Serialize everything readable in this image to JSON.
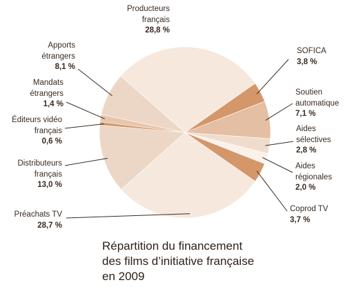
{
  "chart_data": {
    "type": "pie",
    "title": "Répartition du financement\ndes films d’initiative française\nen 2009",
    "unit": "%",
    "slices": [
      {
        "key": "sofica",
        "label": "SOFICA",
        "value": 3.8,
        "value_label": "3,8 %",
        "color": "#d4976a"
      },
      {
        "key": "soutien_automatique",
        "label": "Soutien\nautomatique",
        "value": 7.1,
        "value_label": "7,1 %",
        "color": "#e5bfa3"
      },
      {
        "key": "aides_selectives",
        "label": "Aides\nsélectives",
        "value": 2.8,
        "value_label": "2,8 %",
        "color": "#f0dccd"
      },
      {
        "key": "aides_regionales",
        "label": "Aides\nrégionales",
        "value": 2.0,
        "value_label": "2,0 %",
        "color": "#faf1ea"
      },
      {
        "key": "coprod_tv",
        "label": "Coprod TV",
        "value": 3.7,
        "value_label": "3,7 %",
        "color": "#d4976a"
      },
      {
        "key": "preachats_tv",
        "label": "Préachats TV",
        "value": 28.7,
        "value_label": "28,7 %",
        "color": "#f6e8dd"
      },
      {
        "key": "distributeurs_francais",
        "label": "Distributeurs\nfrançais",
        "value": 13.0,
        "value_label": "13,0 %",
        "color": "#ecd7c6"
      },
      {
        "key": "editeurs_video_francais",
        "label": "Éditeurs vidéo\nfrançais",
        "value": 0.6,
        "value_label": "0,6 %",
        "color": "#d4976a"
      },
      {
        "key": "mandats_etrangers",
        "label": "Mandats\nétrangers",
        "value": 1.4,
        "value_label": "1,4 %",
        "color": "#e7c6ad"
      },
      {
        "key": "apports_etrangers",
        "label": "Apports\nétrangers",
        "value": 8.1,
        "value_label": "8,1 %",
        "color": "#ecd7c6"
      },
      {
        "key": "producteurs_francais",
        "label": "Producteurs\nfrançais",
        "value": 28.8,
        "value_label": "28,8 %",
        "color": "#f6e8dd"
      }
    ],
    "legend": "none"
  }
}
